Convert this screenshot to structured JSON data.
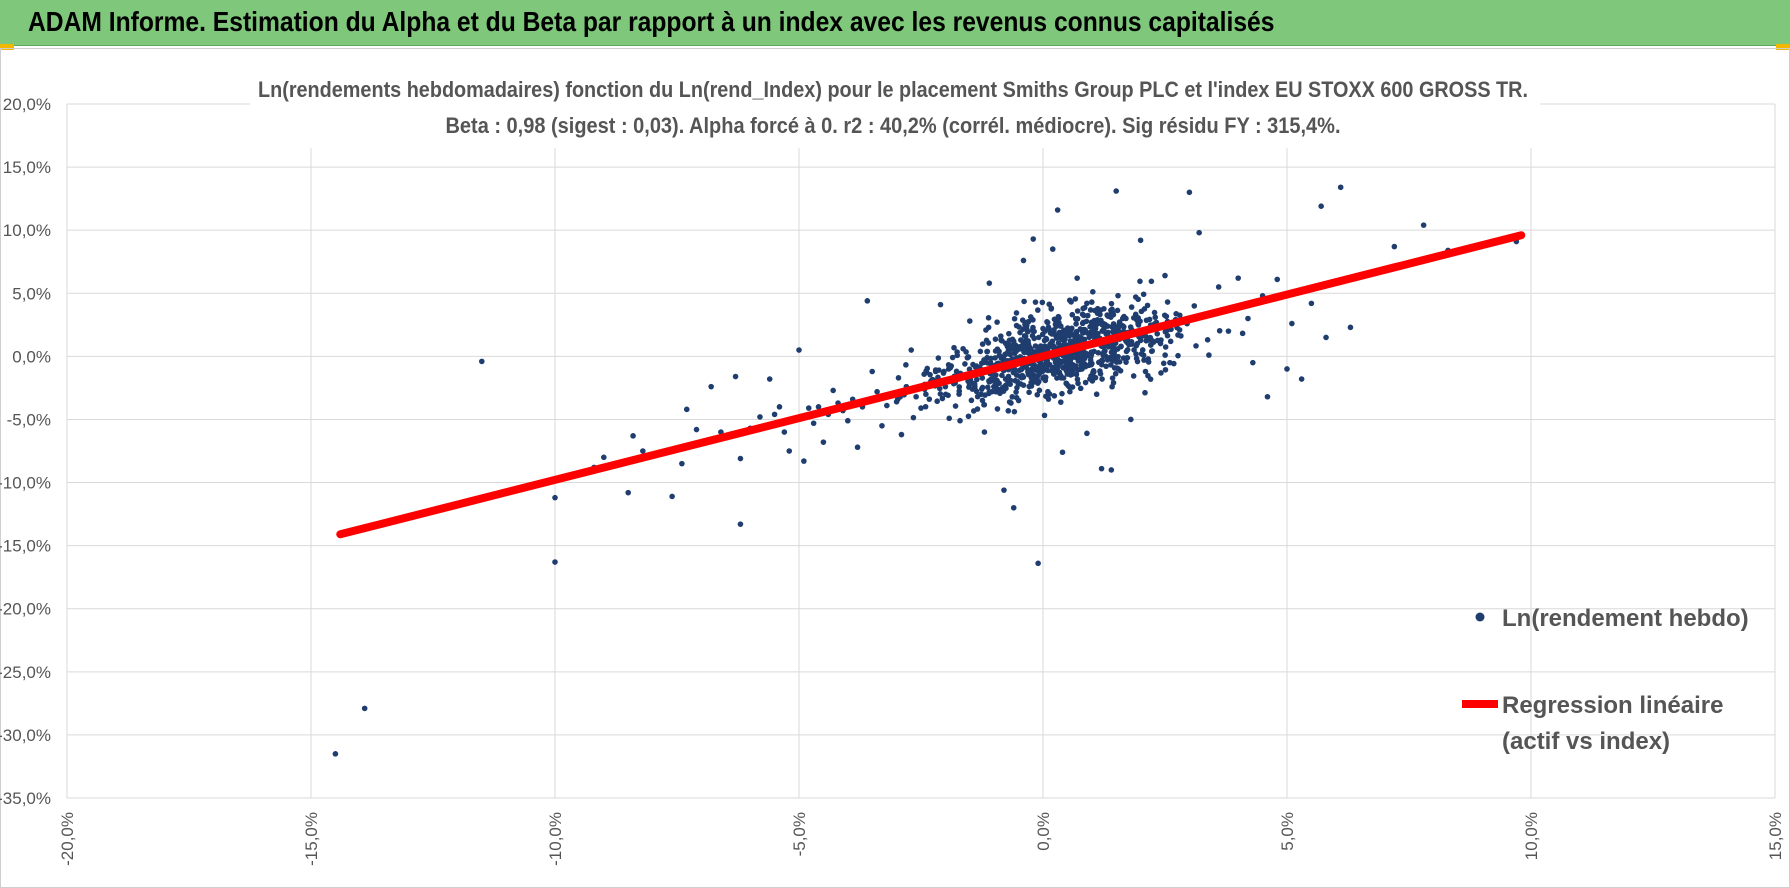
{
  "header": {
    "title": "ADAM Informe. Estimation du Alpha et du Beta par rapport à un index avec les revenus connus capitalisés",
    "background": "#7ec77b"
  },
  "chart_data": {
    "type": "scatter",
    "title_lines": [
      "Ln(rendements hebdomadaires) fonction du Ln(rend_Index) pour le placement Smiths Group PLC et l'index EU STOXX  600 GROSS TR.",
      "Beta : 0,98 (sigest : 0,03). Alpha forcé à 0. r2 : 40,2% (corrél. médiocre). Sig résidu FY : 315,4%."
    ],
    "xlim": [
      -0.2,
      0.15
    ],
    "ylim": [
      -0.35,
      0.2
    ],
    "x_ticks": [
      -0.2,
      -0.15,
      -0.1,
      -0.05,
      0.0,
      0.05,
      0.1,
      0.15
    ],
    "y_ticks": [
      0.2,
      0.15,
      0.1,
      0.05,
      0.0,
      -0.05,
      -0.1,
      -0.15,
      -0.2,
      -0.25,
      -0.3,
      -0.35
    ],
    "x_tick_labels": [
      "-20,0%",
      "-15,0%",
      "-10,0%",
      "-5,0%",
      "0,0%",
      "5,0%",
      "10,0%",
      "15,0%"
    ],
    "y_tick_labels": [
      "20,0%",
      "15,0%",
      "10,0%",
      "5,0%",
      "0,0%",
      "-5,0%",
      "-10,0%",
      "-15,0%",
      "-20,0%",
      "-25,0%",
      "-30,0%",
      "-35,0%"
    ],
    "grid": true,
    "legend_position": "right",
    "series": [
      {
        "name": "Ln(rendement hebdo)",
        "kind": "points",
        "color": "#1f3d6e",
        "points": [
          [
            -0.145,
            -0.315
          ],
          [
            -0.139,
            -0.279
          ],
          [
            -0.115,
            -0.004
          ],
          [
            -0.1,
            -0.163
          ],
          [
            -0.1,
            -0.112
          ],
          [
            -0.085,
            -0.108
          ],
          [
            -0.084,
            -0.063
          ],
          [
            -0.076,
            -0.111
          ],
          [
            -0.074,
            -0.085
          ],
          [
            -0.073,
            -0.042
          ],
          [
            -0.068,
            -0.024
          ],
          [
            -0.063,
            -0.016
          ],
          [
            -0.062,
            -0.081
          ],
          [
            -0.062,
            -0.133
          ],
          [
            -0.058,
            -0.056
          ],
          [
            -0.056,
            -0.018
          ],
          [
            -0.054,
            -0.04
          ],
          [
            -0.052,
            -0.075
          ],
          [
            -0.05,
            0.005
          ],
          [
            -0.049,
            -0.083
          ],
          [
            -0.047,
            -0.053
          ],
          [
            -0.045,
            -0.068
          ],
          [
            -0.043,
            -0.027
          ],
          [
            -0.04,
            -0.051
          ],
          [
            -0.038,
            -0.072
          ],
          [
            -0.036,
            0.044
          ],
          [
            -0.035,
            -0.012
          ],
          [
            -0.033,
            -0.055
          ],
          [
            -0.031,
            -0.03
          ],
          [
            -0.029,
            -0.062
          ],
          [
            -0.027,
            0.005
          ],
          [
            -0.025,
            -0.041
          ],
          [
            -0.023,
            -0.02
          ],
          [
            -0.021,
            0.041
          ],
          [
            -0.019,
            -0.009
          ],
          [
            -0.017,
            -0.051
          ],
          [
            -0.015,
            0.028
          ],
          [
            -0.014,
            -0.022
          ],
          [
            -0.012,
            -0.06
          ],
          [
            -0.011,
            0.058
          ],
          [
            -0.01,
            -0.008
          ],
          [
            -0.008,
            -0.106
          ],
          [
            -0.007,
            0.018
          ],
          [
            -0.006,
            -0.12
          ],
          [
            -0.005,
            -0.035
          ],
          [
            -0.004,
            0.076
          ],
          [
            -0.003,
            -0.012
          ],
          [
            -0.002,
            0.093
          ],
          [
            -0.001,
            -0.164
          ],
          [
            0.0,
            0.022
          ],
          [
            0.001,
            -0.028
          ],
          [
            0.002,
            0.085
          ],
          [
            0.003,
            0.116
          ],
          [
            0.004,
            -0.076
          ],
          [
            0.006,
            0.033
          ],
          [
            0.007,
            0.062
          ],
          [
            0.008,
            -0.01
          ],
          [
            0.009,
            -0.061
          ],
          [
            0.01,
            0.043
          ],
          [
            0.011,
            -0.03
          ],
          [
            0.012,
            -0.089
          ],
          [
            0.013,
            0.024
          ],
          [
            0.014,
            -0.09
          ],
          [
            0.015,
            0.131
          ],
          [
            0.016,
            0.008
          ],
          [
            0.018,
            -0.05
          ],
          [
            0.019,
            0.047
          ],
          [
            0.02,
            0.092
          ],
          [
            0.021,
            -0.012
          ],
          [
            0.023,
            0.031
          ],
          [
            0.025,
            0.064
          ],
          [
            0.026,
            -0.005
          ],
          [
            0.028,
            0.021
          ],
          [
            0.03,
            0.13
          ],
          [
            0.031,
            0.04
          ],
          [
            0.032,
            0.098
          ],
          [
            0.034,
            0.001
          ],
          [
            0.036,
            0.055
          ],
          [
            0.038,
            0.02
          ],
          [
            0.04,
            0.062
          ],
          [
            0.042,
            0.03
          ],
          [
            0.043,
            -0.005
          ],
          [
            0.045,
            0.048
          ],
          [
            0.046,
            -0.032
          ],
          [
            0.048,
            0.061
          ],
          [
            0.05,
            -0.01
          ],
          [
            0.051,
            0.026
          ],
          [
            0.053,
            -0.018
          ],
          [
            0.055,
            0.042
          ],
          [
            0.057,
            0.119
          ],
          [
            0.058,
            0.015
          ],
          [
            0.061,
            0.134
          ],
          [
            0.063,
            0.023
          ],
          [
            0.072,
            0.087
          ],
          [
            0.078,
            0.104
          ],
          [
            0.083,
            0.084
          ],
          [
            0.097,
            0.091
          ],
          [
            0.097,
            0.095
          ],
          [
            -0.09,
            -0.08
          ],
          [
            -0.092,
            -0.088
          ],
          [
            -0.082,
            -0.075
          ],
          [
            -0.071,
            -0.058
          ],
          [
            -0.066,
            -0.06
          ],
          [
            -0.06,
            -0.057
          ],
          [
            -0.058,
            -0.048
          ],
          [
            -0.055,
            -0.046
          ],
          [
            -0.053,
            -0.06
          ],
          [
            -0.048,
            -0.041
          ],
          [
            -0.046,
            -0.04
          ],
          [
            -0.044,
            -0.046
          ],
          [
            -0.042,
            -0.037
          ],
          [
            -0.041,
            -0.043
          ],
          [
            -0.039,
            -0.034
          ],
          [
            -0.037,
            -0.04
          ],
          [
            -0.034,
            -0.028
          ],
          [
            -0.032,
            -0.039
          ],
          [
            -0.03,
            -0.036
          ],
          [
            -0.028,
            -0.024
          ],
          [
            -0.026,
            -0.032
          ],
          [
            -0.024,
            -0.03
          ],
          [
            -0.022,
            -0.012
          ],
          [
            -0.02,
            -0.024
          ],
          [
            -0.018,
            -0.021
          ],
          [
            -0.016,
            -0.006
          ],
          [
            -0.013,
            -0.014
          ],
          [
            -0.009,
            0.004
          ],
          [
            -0.006,
            0.012
          ],
          [
            -0.003,
            0.01
          ],
          [
            0.005,
            -0.014
          ],
          [
            0.017,
            0.03
          ]
        ]
      },
      {
        "name": "Regression linéaire (actif vs index)",
        "legend_lines": [
          "Regression linéaire",
          "(actif vs index)"
        ],
        "kind": "line",
        "color": "#ff0000",
        "x": [
          -0.144,
          0.098
        ],
        "y": [
          -0.141,
          0.096
        ]
      }
    ]
  }
}
